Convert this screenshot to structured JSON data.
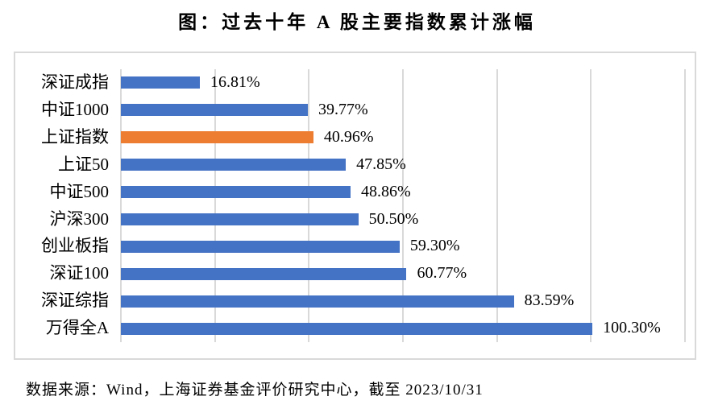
{
  "title": "图：过去十年 A 股主要指数累计涨幅",
  "source": "数据来源：Wind，上海证券基金评价研究中心，截至 2023/10/31",
  "chart_data": {
    "type": "bar",
    "orientation": "horizontal",
    "title": "图：过去十年 A 股主要指数累计涨幅",
    "categories": [
      "深证成指",
      "中证1000",
      "上证指数",
      "上证50",
      "中证500",
      "沪深300",
      "创业板指",
      "深证100",
      "深证综指",
      "万得全A"
    ],
    "values": [
      16.81,
      39.77,
      40.96,
      47.85,
      48.86,
      50.5,
      59.3,
      60.77,
      83.59,
      100.3
    ],
    "value_labels": [
      "16.81%",
      "39.77%",
      "40.96%",
      "47.85%",
      "48.86%",
      "50.50%",
      "59.30%",
      "60.77%",
      "83.59%",
      "100.30%"
    ],
    "highlight_index": 2,
    "xlim": [
      0,
      120
    ],
    "gridline_step": 20,
    "grid": true,
    "legend": "none",
    "xlabel": "",
    "ylabel": "",
    "colors": {
      "bar": "#4472C4",
      "highlight_bar": "#ED7D31",
      "gridline": "#D9D9D9",
      "border": "#D9D9D9",
      "text": "#000000"
    }
  }
}
